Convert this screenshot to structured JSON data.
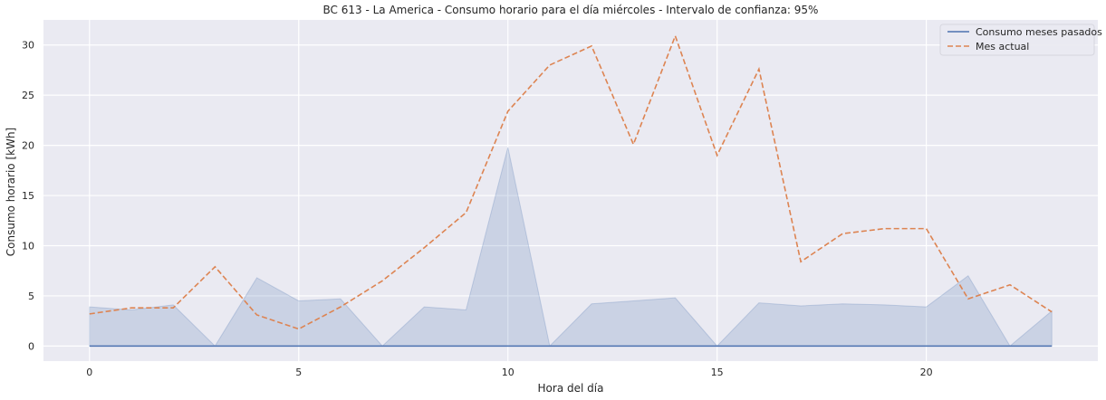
{
  "chart_data": {
    "type": "line",
    "title": "BC 613 - La America - Consumo horario para el día miércoles - Intervalo de confianza: 95%",
    "xlabel": "Hora del día",
    "ylabel": "Consumo horario [kWh]",
    "xlim": [
      -1.1,
      24.1
    ],
    "ylim": [
      -1.5,
      32.5
    ],
    "x_ticks": [
      0,
      5,
      10,
      15,
      20
    ],
    "y_ticks": [
      0,
      5,
      10,
      15,
      20,
      25,
      30
    ],
    "grid": true,
    "legend_position": "top-right",
    "x": [
      0,
      1,
      2,
      3,
      4,
      5,
      6,
      7,
      8,
      9,
      10,
      11,
      12,
      13,
      14,
      15,
      16,
      17,
      18,
      19,
      20,
      21,
      22,
      23
    ],
    "series": [
      {
        "name": "Consumo meses pasados",
        "style": "solid",
        "color": "#4c72b0",
        "values": [
          0,
          0,
          0,
          0,
          0,
          0,
          0,
          0,
          0,
          0,
          0,
          0,
          0,
          0,
          0,
          0,
          0,
          0,
          0,
          0,
          0,
          0,
          0,
          0
        ],
        "ci_upper": [
          3.9,
          3.6,
          4.1,
          0,
          6.8,
          4.5,
          4.7,
          0,
          3.9,
          3.6,
          19.8,
          0,
          4.2,
          4.5,
          4.8,
          0,
          4.3,
          4.0,
          4.2,
          4.1,
          3.9,
          7.0,
          0,
          3.5
        ],
        "ci_lower": [
          0,
          0,
          0,
          0,
          0,
          0,
          0,
          0,
          0,
          0,
          0,
          0,
          0,
          0,
          0,
          0,
          0,
          0,
          0,
          0,
          0,
          0,
          0,
          0
        ]
      },
      {
        "name": "Mes actual",
        "style": "dashed",
        "color": "#dd8452",
        "values": [
          3.2,
          3.8,
          3.8,
          7.9,
          3.1,
          1.7,
          3.9,
          6.5,
          9.8,
          13.3,
          23.4,
          28.0,
          29.9,
          20.1,
          30.9,
          19.0,
          27.6,
          8.4,
          11.2,
          11.7,
          11.7,
          4.7,
          6.1,
          3.4
        ]
      }
    ]
  }
}
